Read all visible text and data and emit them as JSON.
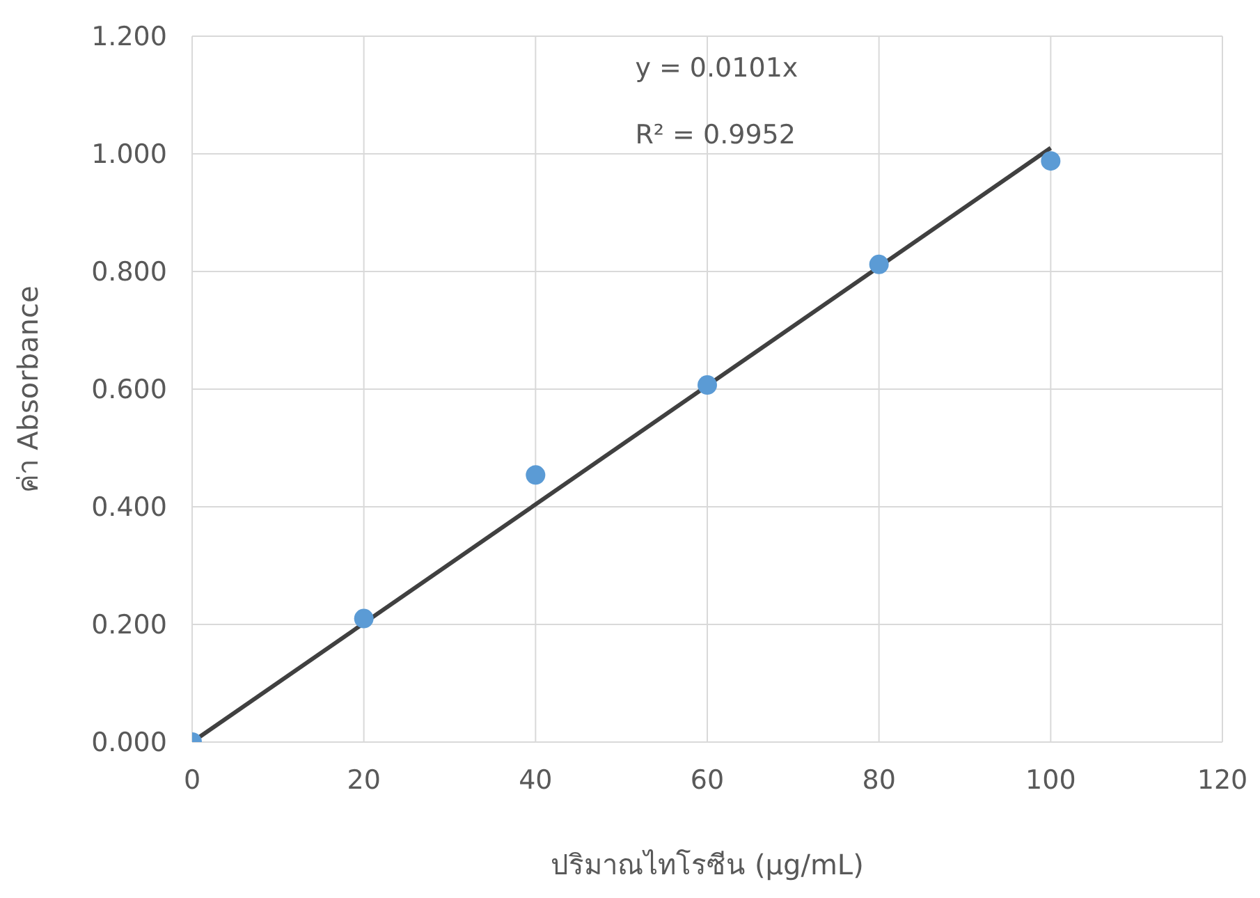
{
  "chart_data": {
    "type": "scatter",
    "xlabel": "ปริมาณไทโรซีน (μg/mL)",
    "ylabel": "ค่า Absorbance",
    "x": [
      0,
      20,
      40,
      60,
      80,
      100
    ],
    "series": [
      {
        "color": "#5b9bd5",
        "marker": "circle",
        "values": [
          0,
          0.21,
          0.454,
          0.607,
          0.812,
          0.988
        ]
      },
      {
        "type": "line",
        "color": "#404040",
        "marker": "none",
        "x": [
          0,
          100
        ],
        "values": [
          0,
          1.01
        ]
      }
    ],
    "xlim": [
      0,
      120
    ],
    "xticks": [
      0,
      20,
      40,
      60,
      80,
      100,
      120
    ],
    "ylim": [
      0,
      1.2
    ],
    "yticks": [
      {
        "value": 0,
        "label": "0.000"
      },
      {
        "value": 0.2,
        "label": "0.200"
      },
      {
        "value": 0.4,
        "label": "0.400"
      },
      {
        "value": 0.6,
        "label": "0.600"
      },
      {
        "value": 0.8,
        "label": "0.800"
      },
      {
        "value": 1,
        "label": "1.000"
      },
      {
        "value": 1.2,
        "label": "1.200"
      }
    ],
    "annotations": [
      "y = 0.0101x",
      "R² = 0.9952"
    ],
    "grid": true,
    "legend": false
  }
}
